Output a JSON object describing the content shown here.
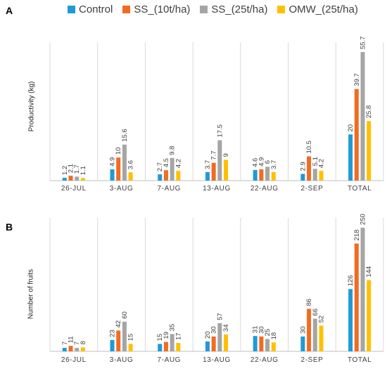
{
  "legend": {
    "items": [
      {
        "label": "Control",
        "color": "#1F9AD6"
      },
      {
        "label": "SS_(10t/ha)",
        "color": "#F26B21"
      },
      {
        "label": "SS_(25t/ha)",
        "color": "#A5A5A5"
      },
      {
        "label": "OMW_(25t/ha)",
        "color": "#FFC000"
      }
    ]
  },
  "chart_data": [
    {
      "panel": "A",
      "type": "bar",
      "ylabel": "Productivity (kg)",
      "grid": true,
      "categories": [
        "26-JUL",
        "3-AUG",
        "7-AUG",
        "13-AUG",
        "22-AUG",
        "2-SEP",
        "TOTAL"
      ],
      "series": [
        {
          "name": "Control",
          "values": [
            1.2,
            4.9,
            2.7,
            3.7,
            4.6,
            2.9,
            20
          ]
        },
        {
          "name": "SS_(10t/ha)",
          "values": [
            2.1,
            10,
            4.5,
            7.7,
            4.9,
            10.5,
            39.7
          ]
        },
        {
          "name": "SS_(25t/ha)",
          "values": [
            1.7,
            15.6,
            9.8,
            17.5,
            6,
            5.1,
            55.7
          ]
        },
        {
          "name": "OMW_(25t/ha)",
          "values": [
            1.1,
            3.6,
            4.2,
            9,
            3.7,
            4.2,
            25.8
          ]
        }
      ],
      "ylim": [
        0,
        60
      ]
    },
    {
      "panel": "B",
      "type": "bar",
      "ylabel": "Number of fruits",
      "grid": true,
      "categories": [
        "26-JUL",
        "3-AUG",
        "7-AUG",
        "13-AUG",
        "22-AUG",
        "2-SEP",
        "TOTAL"
      ],
      "series": [
        {
          "name": "Control",
          "values": [
            7,
            23,
            15,
            20,
            31,
            30,
            126
          ]
        },
        {
          "name": "SS_(10t/ha)",
          "values": [
            11,
            42,
            19,
            30,
            30,
            86,
            218
          ]
        },
        {
          "name": "SS_(25t/ha)",
          "values": [
            7,
            60,
            35,
            57,
            25,
            66,
            250
          ]
        },
        {
          "name": "OMW_(25t/ha)",
          "values": [
            8,
            15,
            17,
            34,
            18,
            52,
            144
          ]
        }
      ],
      "ylim": [
        0,
        270
      ]
    }
  ]
}
